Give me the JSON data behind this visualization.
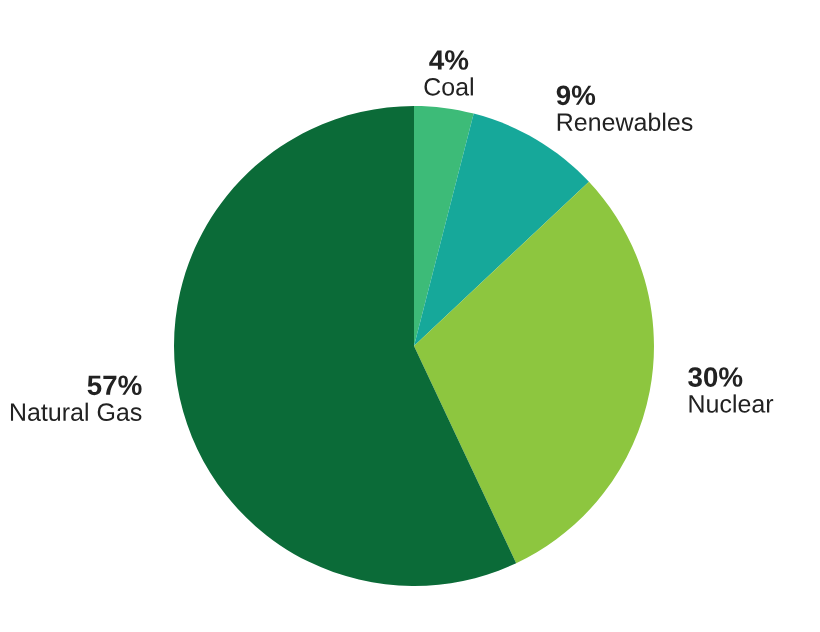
{
  "chart_data": {
    "type": "pie",
    "categories": [
      "Coal",
      "Renewables",
      "Nuclear",
      "Natural Gas"
    ],
    "values": [
      4,
      9,
      30,
      57
    ],
    "value_labels": [
      "4%",
      "9%",
      "30%",
      "57%"
    ],
    "colors": [
      "#3dbb78",
      "#16a89a",
      "#8dc63f",
      "#0b6b38"
    ],
    "legend": false
  }
}
